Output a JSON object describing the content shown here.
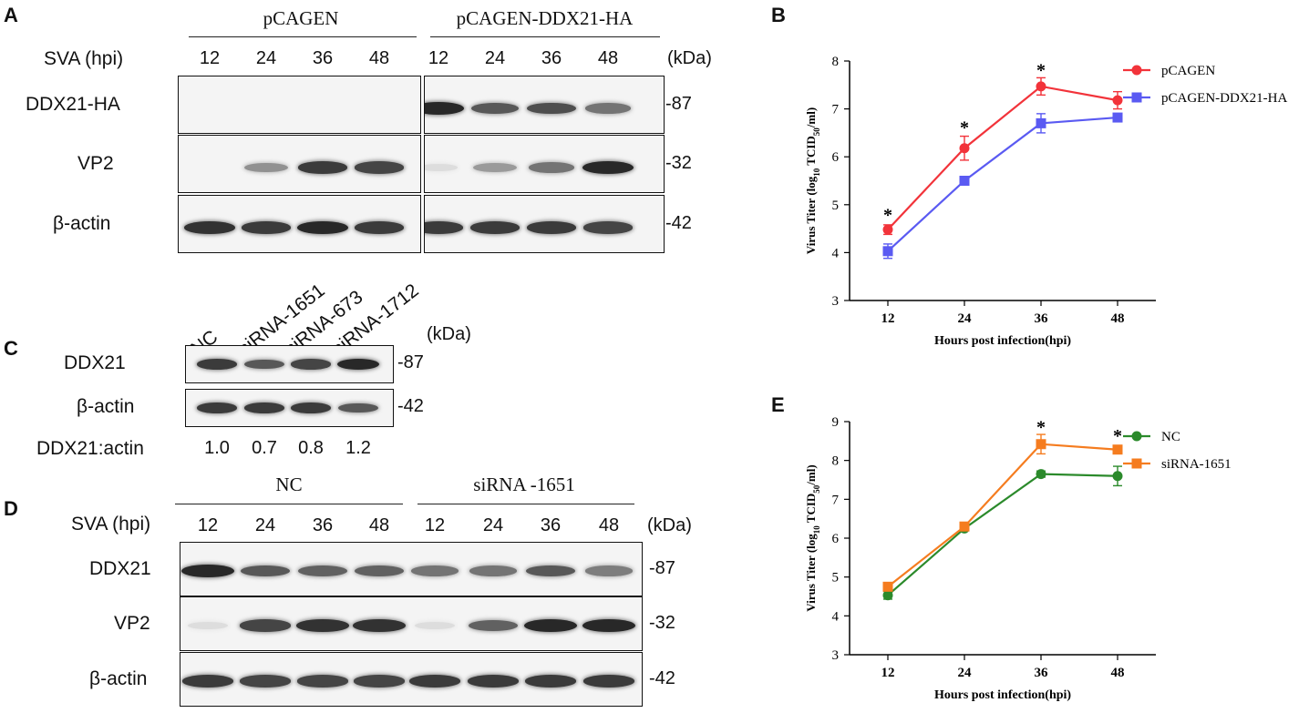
{
  "panels": {
    "A": "A",
    "B": "B",
    "C": "C",
    "D": "D",
    "E": "E"
  },
  "panelA": {
    "groups": [
      "pCAGEN",
      "pCAGEN-DDX21-HA"
    ],
    "row_header": "SVA (hpi)",
    "lanes": [
      "12",
      "24",
      "36",
      "48",
      "12",
      "24",
      "36",
      "48"
    ],
    "unit": "(kDa)",
    "rows": [
      {
        "label": "DDX21-HA",
        "kda": "-87",
        "intensity": [
          0,
          0,
          0,
          0,
          1.0,
          0.75,
          0.8,
          0.6
        ]
      },
      {
        "label": "VP2",
        "kda": "-32",
        "intensity": [
          0.0,
          0.45,
          0.9,
          0.85,
          0.05,
          0.4,
          0.6,
          1.0
        ]
      },
      {
        "label": "β-actin",
        "kda": "-42",
        "intensity": [
          0.95,
          0.9,
          1.0,
          0.9,
          0.9,
          0.9,
          0.9,
          0.85
        ]
      }
    ]
  },
  "panelC": {
    "lanes": [
      "NC",
      "siRNA-1651",
      "siRNA-673",
      "siRNA-1712"
    ],
    "unit": "(kDa)",
    "rows": [
      {
        "label": "DDX21",
        "kda": "-87",
        "intensity": [
          0.9,
          0.75,
          0.85,
          1.0
        ]
      },
      {
        "label": "β-actin",
        "kda": "-42",
        "intensity": [
          0.9,
          0.9,
          0.9,
          0.75
        ]
      }
    ],
    "ratio_label": "DDX21:actin",
    "ratios": [
      "1.0",
      "0.7",
      "0.8",
      "1.2"
    ]
  },
  "panelD": {
    "groups": [
      "NC",
      "siRNA -1651"
    ],
    "row_header": "SVA (hpi)",
    "lanes": [
      "12",
      "24",
      "36",
      "48",
      "12",
      "24",
      "36",
      "48"
    ],
    "unit": "(kDa)",
    "rows": [
      {
        "label": "DDX21",
        "kda": "-87",
        "intensity": [
          1.0,
          0.75,
          0.7,
          0.7,
          0.6,
          0.6,
          0.75,
          0.55
        ]
      },
      {
        "label": "VP2",
        "kda": "-32",
        "intensity": [
          0.05,
          0.85,
          0.95,
          0.95,
          0.05,
          0.7,
          1.0,
          1.0
        ]
      },
      {
        "label": "β-actin",
        "kda": "-42",
        "intensity": [
          0.9,
          0.85,
          0.85,
          0.85,
          0.9,
          0.9,
          0.9,
          0.9
        ]
      }
    ]
  },
  "chart_data": [
    {
      "id": "B",
      "type": "line",
      "x": [
        12,
        24,
        36,
        48
      ],
      "xlabel": "Hours post infection(hpi)",
      "ylabel_main": "Virus Titer (log",
      "ylabel_sub": "10",
      "ylabel_mid": " TCID",
      "ylabel_sub2": "50",
      "ylabel_end": "/ml)",
      "ylim": [
        3,
        8
      ],
      "yticks": [
        "3",
        "4",
        "5",
        "6",
        "7",
        "8"
      ],
      "xticks": [
        "12",
        "24",
        "36",
        "48"
      ],
      "legend_placement": "top-right",
      "series": [
        {
          "name": "pCAGEN",
          "color": "#f2333a",
          "marker": "circle",
          "values": [
            4.48,
            6.18,
            7.47,
            7.18
          ],
          "err": [
            0.1,
            0.25,
            0.18,
            0.18
          ]
        },
        {
          "name": "pCAGEN-DDX21-HA",
          "color": "#5a5af2",
          "marker": "square",
          "values": [
            4.03,
            5.5,
            6.7,
            6.82
          ],
          "err": [
            0.15,
            0.05,
            0.2,
            0.08
          ]
        }
      ],
      "annotations": [
        {
          "x": 12,
          "y": 4.78,
          "text": "*"
        },
        {
          "x": 24,
          "y": 6.6,
          "text": "*"
        },
        {
          "x": 36,
          "y": 7.8,
          "text": "*"
        }
      ]
    },
    {
      "id": "E",
      "type": "line",
      "x": [
        12,
        24,
        36,
        48
      ],
      "xlabel": "Hours post infection(hpi)",
      "ylabel_main": "Virus Titer (log",
      "ylabel_sub": "10",
      "ylabel_mid": " TCID",
      "ylabel_sub2": "50",
      "ylabel_end": "/ml)",
      "ylim": [
        3,
        9
      ],
      "yticks": [
        "3",
        "4",
        "5",
        "6",
        "7",
        "8",
        "9"
      ],
      "xticks": [
        "12",
        "24",
        "36",
        "48"
      ],
      "legend_placement": "top-right",
      "series": [
        {
          "name": "NC",
          "color": "#2b8a2b",
          "marker": "circle",
          "values": [
            4.53,
            6.25,
            7.65,
            7.6
          ],
          "err": [
            0.1,
            0.05,
            0.08,
            0.25
          ]
        },
        {
          "name": "siRNA-1651",
          "color": "#f57c1f",
          "marker": "square",
          "values": [
            4.75,
            6.3,
            8.42,
            8.28
          ],
          "err": [
            0.05,
            0.05,
            0.25,
            0.05
          ]
        }
      ],
      "annotations": [
        {
          "x": 36,
          "y": 8.85,
          "text": "*"
        },
        {
          "x": 48,
          "y": 8.62,
          "text": "*"
        }
      ]
    }
  ]
}
